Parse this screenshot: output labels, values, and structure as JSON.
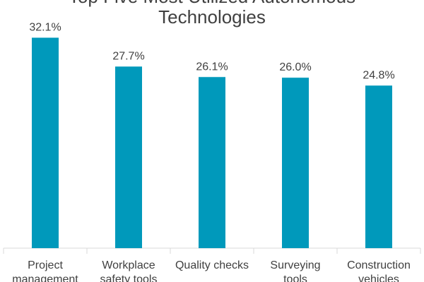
{
  "chart_data": {
    "type": "bar",
    "title_lines": [
      "Top Five Most Utilized Autonomous",
      "Technologies"
    ],
    "categories": [
      [
        "Project",
        "management"
      ],
      [
        "Workplace",
        "safety tools"
      ],
      [
        "Quality checks"
      ],
      [
        "Surveying",
        "tools"
      ],
      [
        "Construction",
        "vehicles"
      ]
    ],
    "values": [
      32.1,
      27.7,
      26.1,
      26.0,
      24.8
    ],
    "data_labels": [
      "32.1%",
      "27.7%",
      "26.1%",
      "26.0%",
      "24.8%"
    ],
    "ylim": [
      0,
      35
    ],
    "grid": false,
    "legend": "none",
    "colors": {
      "bar": "#0099BB",
      "text": "#404040",
      "axis": "#D9D9D9"
    }
  }
}
